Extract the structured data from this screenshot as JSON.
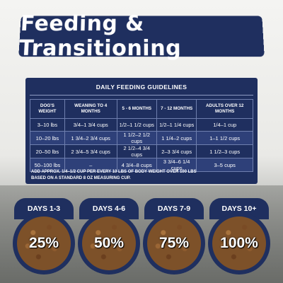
{
  "title": "Feeding & Transitioning",
  "guidelines": {
    "heading": "DAILY FEEDING GUIDELINES",
    "columns": [
      "DOG'S WEIGHT",
      "WEANING TO 4 MONTHS",
      "5 - 6 MONTHS",
      "7 - 12 MONTHS",
      "ADULTS OVER 12 MONTHS"
    ],
    "rows": [
      [
        "3–10 lbs",
        "3/4–1 3/4 cups",
        "1/2–1 1/2 cups",
        "1/2–1 1/4 cups",
        "1/4–1 cup"
      ],
      [
        "10–20 lbs",
        "1 3/4–2 3/4 cups",
        "1 1/2–2 1/2 cups",
        "1 1/4–2 cups",
        "1–1 1/2 cups"
      ],
      [
        "20–50 lbs",
        "2 3/4–5 3/4 cups",
        "2 1/2–4 3/4 cups",
        "2–3 3/4 cups",
        "1 1/2–3 cups"
      ],
      [
        "50–100 lbs",
        "–",
        "4 3/4–8 cups",
        "3 3/4–6 1/4 cups",
        "3–5 cups"
      ]
    ],
    "note_line1": "ADD APPROX. 1/4–1/2 CUP PER EVERY 10 LBS OF BODY WEIGHT OVER 100 LBS",
    "note_line2": "BASED ON A STANDARD 8 OZ MEASURING CUP."
  },
  "transition": [
    {
      "days": "DAYS 1-3",
      "percent": "25%"
    },
    {
      "days": "DAYS 4-6",
      "percent": "50%"
    },
    {
      "days": "DAYS 7-9",
      "percent": "75%"
    },
    {
      "days": "DAYS 10+",
      "percent": "100%"
    }
  ],
  "colors": {
    "navy": "#1f2f5f",
    "white": "#ffffff",
    "kibble": "#7d5129"
  }
}
